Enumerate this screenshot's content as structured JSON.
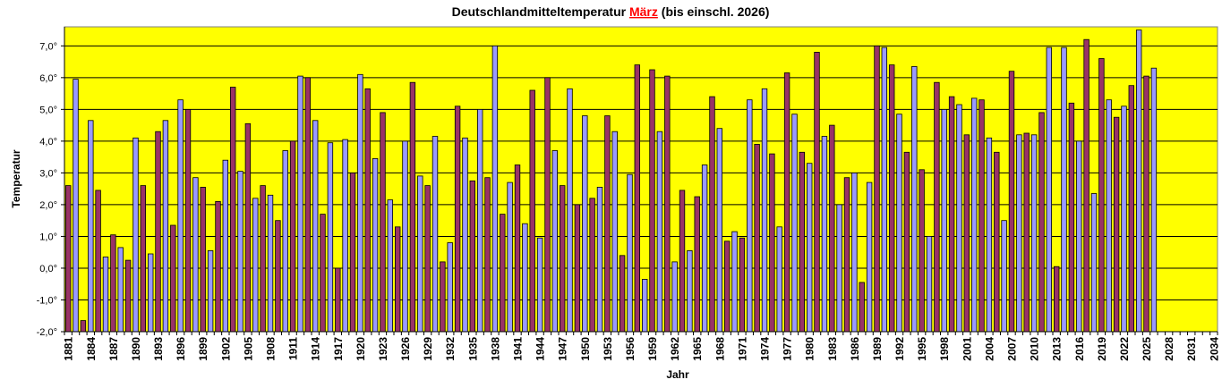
{
  "chart_data": {
    "type": "bar",
    "title_parts": [
      "Deutschlandmitteltemperatur ",
      "März",
      " (bis einschl. 2026)"
    ],
    "xlabel": "Jahr",
    "ylabel": "Temperatur",
    "ylim": [
      -2.0,
      7.6
    ],
    "yticks": [
      -2,
      -1,
      0,
      1,
      2,
      3,
      4,
      5,
      6,
      7
    ],
    "ytick_suffix": "°",
    "x_start": 1881,
    "x_end": 2034,
    "xtick_step": 3,
    "grid": true,
    "colors": {
      "background": "#ffff00",
      "bar_a": "#993366",
      "bar_b": "#9999ff",
      "highlight": "#ff0000",
      "grid": "#000000"
    },
    "years_from": 1881,
    "values": [
      2.6,
      5.95,
      -1.65,
      4.65,
      2.45,
      0.35,
      1.05,
      0.65,
      0.25,
      4.1,
      2.6,
      0.45,
      4.3,
      4.65,
      1.35,
      5.3,
      5.0,
      2.85,
      2.55,
      0.55,
      2.1,
      3.4,
      5.7,
      3.05,
      4.55,
      2.2,
      2.6,
      2.3,
      1.5,
      3.7,
      4.0,
      6.05,
      6.0,
      4.65,
      1.7,
      3.95,
      0.0,
      4.05,
      3.0,
      6.1,
      5.65,
      3.45,
      4.9,
      2.15,
      1.3,
      4.0,
      5.85,
      2.9,
      2.6,
      4.15,
      0.2,
      0.8,
      5.1,
      4.1,
      2.75,
      5.0,
      2.85,
      7.0,
      1.7,
      2.7,
      3.25,
      1.4,
      5.6,
      0.95,
      6.0,
      3.7,
      2.6,
      5.65,
      2.0,
      4.8,
      2.2,
      2.55,
      4.8,
      4.3,
      0.4,
      2.95,
      6.4,
      -0.35,
      6.25,
      4.3,
      6.05,
      0.2,
      2.45,
      0.55,
      2.25,
      3.25,
      5.4,
      4.4,
      0.85,
      1.15,
      0.95,
      5.3,
      3.9,
      5.65,
      3.6,
      1.3,
      6.15,
      4.85,
      3.65,
      3.3,
      6.8,
      4.15,
      4.5,
      2.0,
      2.85,
      3.0,
      -0.45,
      2.7,
      7.0,
      6.95,
      6.4,
      4.85,
      3.65,
      6.35,
      3.1,
      1.0,
      5.85,
      5.0,
      5.4,
      5.15,
      4.2,
      5.35,
      5.3,
      4.1,
      3.65,
      1.5,
      6.2,
      4.2,
      4.25,
      4.2,
      4.9,
      6.95,
      0.05,
      6.95,
      5.2,
      4.0,
      7.2,
      2.35,
      6.6,
      5.3,
      4.75,
      5.1,
      5.75,
      7.5,
      6.05,
      6.3
    ]
  }
}
